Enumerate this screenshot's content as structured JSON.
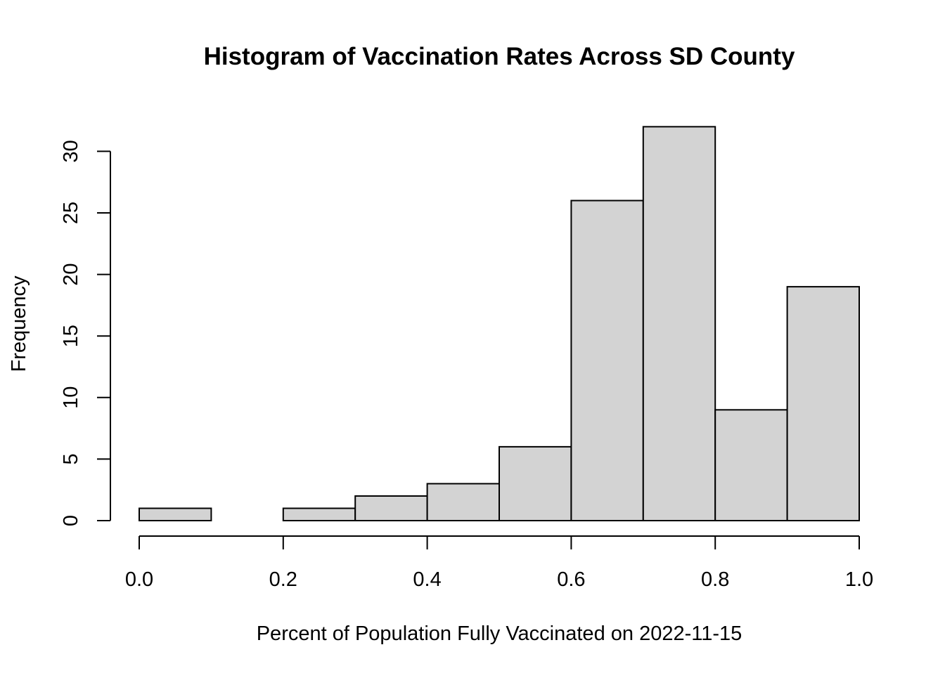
{
  "chart_data": {
    "type": "bar",
    "title": "Histogram of Vaccination Rates Across SD County",
    "xlabel": "Percent of Population Fully Vaccinated on 2022-11-15",
    "ylabel": "Frequency",
    "bins": [
      {
        "x0": 0.0,
        "x1": 0.1,
        "count": 1
      },
      {
        "x0": 0.1,
        "x1": 0.2,
        "count": 0
      },
      {
        "x0": 0.2,
        "x1": 0.3,
        "count": 1
      },
      {
        "x0": 0.3,
        "x1": 0.4,
        "count": 2
      },
      {
        "x0": 0.4,
        "x1": 0.5,
        "count": 3
      },
      {
        "x0": 0.5,
        "x1": 0.6,
        "count": 6
      },
      {
        "x0": 0.6,
        "x1": 0.7,
        "count": 26
      },
      {
        "x0": 0.7,
        "x1": 0.8,
        "count": 32
      },
      {
        "x0": 0.8,
        "x1": 0.9,
        "count": 9
      },
      {
        "x0": 0.9,
        "x1": 1.0,
        "count": 19
      }
    ],
    "xlim": [
      0.0,
      1.0
    ],
    "ylim": [
      0,
      30
    ],
    "x_ticks": [
      0.0,
      0.2,
      0.4,
      0.6,
      0.8,
      1.0
    ],
    "x_tick_labels": [
      "0.0",
      "0.2",
      "0.4",
      "0.6",
      "0.8",
      "1.0"
    ],
    "y_ticks": [
      0,
      5,
      10,
      15,
      20,
      25,
      30
    ],
    "y_tick_labels": [
      "0",
      "5",
      "10",
      "15",
      "20",
      "25",
      "30"
    ],
    "grid": false,
    "bar_fill": "#d3d3d3",
    "bar_stroke": "#000000"
  }
}
